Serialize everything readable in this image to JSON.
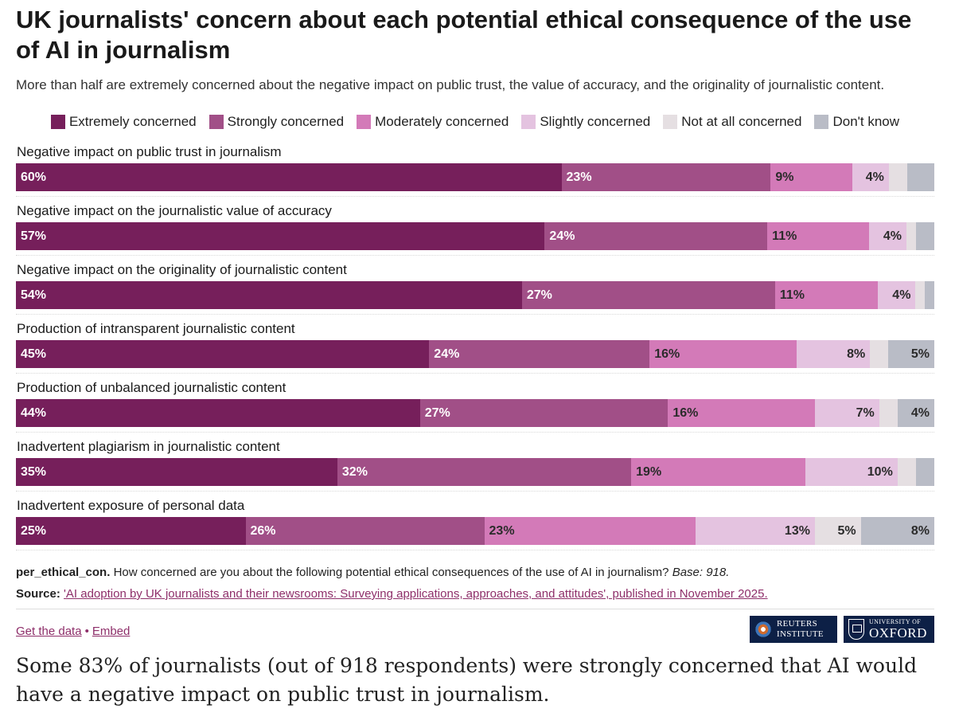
{
  "title": "UK journalists' concern about each potential ethical consequence of the use of AI in journalism",
  "subtitle": "More than half are extremely concerned about the negative impact on public trust, the value of accuracy, and the originality of journalistic content.",
  "colors": {
    "extremely": "#761f5b",
    "strongly": "#a14f87",
    "moderately": "#d37ab8",
    "slightly": "#e4c3e0",
    "not_at_all": "#e5dfe2",
    "dont_know": "#b9bcc6",
    "dark_text": "#2b2b2b",
    "light_text": "#ffffff"
  },
  "chart_data": {
    "type": "bar",
    "orientation": "horizontal",
    "stacked": true,
    "xlim": [
      0,
      100
    ],
    "legend_position": "top-center",
    "categories": [
      "Negative impact on public trust in journalism",
      "Negative impact on the journalistic value of accuracy",
      "Negative impact on the originality of journalistic content",
      "Production of intransparent journalistic content",
      "Production of unbalanced journalistic content",
      "Inadvertent plagiarism in journalistic content",
      "Inadvertent exposure of personal data"
    ],
    "series": [
      {
        "key": "extremely",
        "name": "Extremely concerned",
        "values": [
          60,
          57,
          54,
          45,
          44,
          35,
          25
        ],
        "labels": [
          "60%",
          "57%",
          "54%",
          "45%",
          "44%",
          "35%",
          "25%"
        ]
      },
      {
        "key": "strongly",
        "name": "Strongly concerned",
        "values": [
          23,
          24,
          27,
          24,
          27,
          32,
          26
        ],
        "labels": [
          "23%",
          "24%",
          "27%",
          "24%",
          "27%",
          "32%",
          "26%"
        ]
      },
      {
        "key": "moderately",
        "name": "Moderately concerned",
        "values": [
          9,
          11,
          11,
          16,
          16,
          19,
          23
        ],
        "labels": [
          "9%",
          "11%",
          "11%",
          "16%",
          "16%",
          "19%",
          "23%"
        ]
      },
      {
        "key": "slightly",
        "name": "Slightly concerned",
        "values": [
          4,
          4,
          4,
          8,
          7,
          10,
          13
        ],
        "labels": [
          "4%",
          "4%",
          "4%",
          "8%",
          "7%",
          "10%",
          "13%"
        ]
      },
      {
        "key": "not_at_all",
        "name": "Not at all concerned",
        "values": [
          2,
          1,
          1,
          2,
          2,
          2,
          5
        ],
        "labels": [
          "",
          "",
          "",
          "",
          "",
          "",
          "5%"
        ]
      },
      {
        "key": "dont_know",
        "name": "Don't know",
        "values": [
          3,
          2,
          1,
          5,
          4,
          2,
          8
        ],
        "labels": [
          "",
          "",
          "",
          "5%",
          "4%",
          "",
          "8%"
        ]
      }
    ]
  },
  "notes": {
    "question_id": "per_ethical_con.",
    "question_text": "How concerned are you about the following potential ethical consequences of the use of AI in journalism?",
    "base": "Base: 918.",
    "source_label": "Source:",
    "source_link": "'AI adoption by UK journalists and their newsrooms: Surveying applications, approaches, and attitudes', published in November 2025."
  },
  "links": {
    "get_data": "Get the data",
    "separator": "•",
    "embed": "Embed"
  },
  "logos": {
    "reuters_line1": "REUTERS",
    "reuters_line2": "INSTITUTE",
    "oxford_line1": "UNIVERSITY OF",
    "oxford_line2": "OXFORD"
  },
  "caption": "Some 83% of journalists (out of 918 respondents) were strongly concerned that AI would have a negative impact on public trust in journalism."
}
